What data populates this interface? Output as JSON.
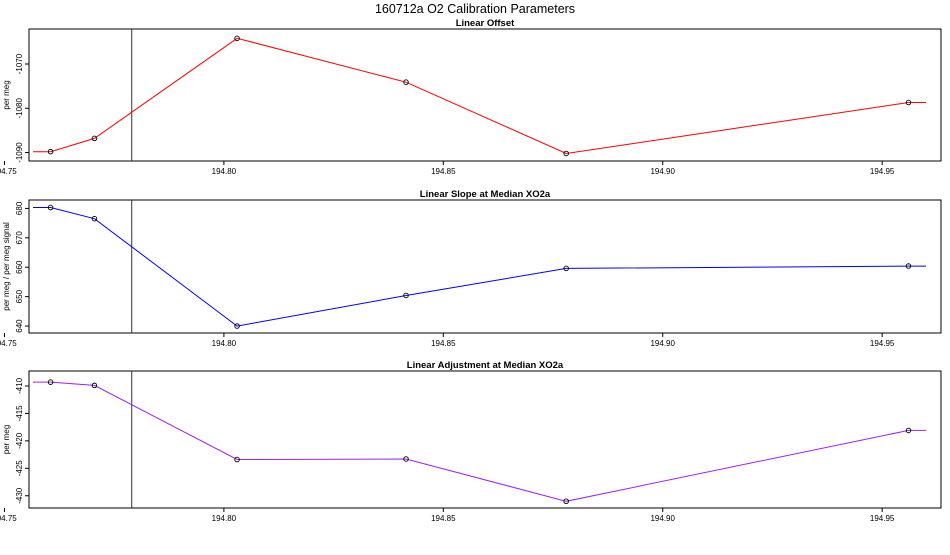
{
  "title": "160712a   O2 Calibration Parameters",
  "chart_data": [
    {
      "type": "line",
      "title": "Linear Offset",
      "ylabel": "per meg",
      "xlabel": "",
      "color": "#ff0000",
      "xlim": [
        194.7565,
        194.9625
      ],
      "ylim": [
        -1091,
        -1063
      ],
      "xticks": [
        194.75,
        194.8,
        194.85,
        194.9,
        194.95
      ],
      "xtick_labels": [
        "194.75",
        "194.80",
        "194.85",
        "194.90",
        "194.95"
      ],
      "yticks": [
        -1090,
        -1080,
        -1070
      ],
      "ytick_labels": [
        "-1090",
        "-1080",
        "-1070"
      ],
      "vline_x": 194.779,
      "x": [
        194.7565,
        194.7605,
        194.7705,
        194.803,
        194.8415,
        194.878,
        194.956,
        194.96
      ],
      "y": [
        -1089.8,
        -1089.8,
        -1086.8,
        -1064.2,
        -1074.1,
        -1090.2,
        -1078.7,
        -1078.7
      ],
      "markers": [
        1,
        2,
        3,
        4,
        5,
        6
      ]
    },
    {
      "type": "line",
      "title": "Linear Slope at Median XO2a",
      "ylabel": "per meg / per meg signal",
      "xlabel": "",
      "color": "#0000ff",
      "xlim": [
        194.7565,
        194.9625
      ],
      "ylim": [
        639,
        681.5
      ],
      "xticks": [
        194.75,
        194.8,
        194.85,
        194.9,
        194.95
      ],
      "xtick_labels": [
        "194.75",
        "194.80",
        "194.85",
        "194.90",
        "194.95"
      ],
      "yticks": [
        640,
        650,
        660,
        670,
        680
      ],
      "ytick_labels": [
        "640",
        "650",
        "660",
        "670",
        "680"
      ],
      "vline_x": 194.779,
      "x": [
        194.7565,
        194.7605,
        194.7705,
        194.803,
        194.8415,
        194.878,
        194.956,
        194.96
      ],
      "y": [
        680.3,
        680.3,
        676.5,
        640.0,
        650.4,
        659.6,
        660.4,
        660.4
      ],
      "markers": [
        1,
        2,
        3,
        4,
        5,
        6
      ]
    },
    {
      "type": "line",
      "title": "Linear Adjustment at Median XO2a",
      "ylabel": "per meg",
      "xlabel": "",
      "color": "#a020f0",
      "xlim": [
        194.7565,
        194.9625
      ],
      "ylim": [
        -431.5,
        -408
      ],
      "xticks": [
        194.75,
        194.8,
        194.85,
        194.9,
        194.95
      ],
      "xtick_labels": [
        "194.75",
        "194.80",
        "194.85",
        "194.90",
        "194.95"
      ],
      "yticks": [
        -430,
        -425,
        -420,
        -415,
        -410
      ],
      "ytick_labels": [
        "-430",
        "-425",
        "-420",
        "-415",
        "-410"
      ],
      "vline_x": 194.779,
      "x": [
        194.7565,
        194.7605,
        194.7705,
        194.803,
        194.8415,
        194.878,
        194.956,
        194.96
      ],
      "y": [
        -409.3,
        -409.3,
        -409.9,
        -423.4,
        -423.3,
        -431.0,
        -418.1,
        -418.1
      ],
      "markers": [
        1,
        2,
        3,
        4,
        5,
        6
      ]
    }
  ]
}
